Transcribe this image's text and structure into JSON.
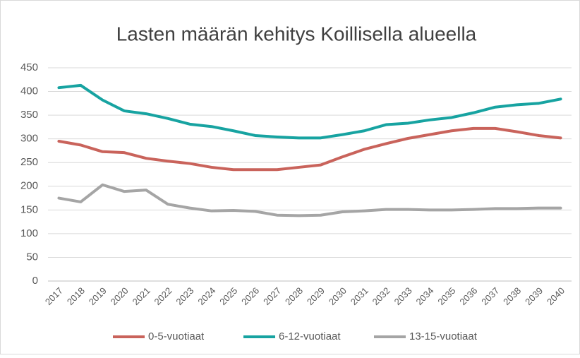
{
  "chart_data": {
    "type": "line",
    "title": "Lasten määrän kehitys Koillisella alueella",
    "categories": [
      "2017",
      "2018",
      "2019",
      "2020",
      "2021",
      "2022",
      "2023",
      "2024",
      "2025",
      "2026",
      "2027",
      "2028",
      "2029",
      "2030",
      "2031",
      "2032",
      "2033",
      "2034",
      "2035",
      "2036",
      "2037",
      "2038",
      "2039",
      "2040"
    ],
    "series": [
      {
        "name": "0-5-vuotiaat",
        "color": "#c9635b",
        "values": [
          295,
          287,
          273,
          271,
          259,
          253,
          248,
          240,
          235,
          235,
          235,
          240,
          245,
          262,
          278,
          290,
          301,
          309,
          317,
          322,
          322,
          315,
          307,
          302
        ]
      },
      {
        "name": "6-12-vuotiaat",
        "color": "#17a3a1",
        "values": [
          408,
          413,
          382,
          359,
          353,
          343,
          331,
          326,
          317,
          307,
          304,
          302,
          302,
          309,
          317,
          330,
          333,
          340,
          345,
          355,
          367,
          372,
          375,
          384
        ]
      },
      {
        "name": "13-15-vuotiaat",
        "color": "#a5a5a5",
        "values": [
          175,
          167,
          203,
          189,
          192,
          162,
          154,
          148,
          149,
          147,
          139,
          138,
          139,
          146,
          148,
          151,
          151,
          150,
          150,
          151,
          153,
          153,
          154,
          154
        ]
      }
    ],
    "ylim": [
      0,
      450
    ],
    "yticks": [
      0,
      50,
      100,
      150,
      200,
      250,
      300,
      350,
      400,
      450
    ],
    "grid": true,
    "legend": "bottom"
  }
}
